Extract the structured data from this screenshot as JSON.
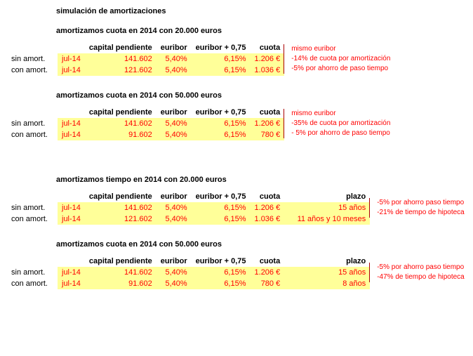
{
  "colors": {
    "highlight_bg": "#ffff99",
    "value_text": "#ff0000",
    "note_text": "#ff0000",
    "header_text": "#000000",
    "background": "#ffffff"
  },
  "typography": {
    "font_family": "Arial",
    "base_size_pt": 8,
    "title_weight": "bold"
  },
  "page_title": "simulación de amortizaciones",
  "headers": {
    "date": "",
    "capital": "capital pendiente",
    "euribor": "euribor",
    "spread": "euribor + 0,75",
    "cuota": "cuota",
    "plazo": "plazo"
  },
  "row_labels": {
    "sin": "sin amort.",
    "con": "con amort."
  },
  "sections": [
    {
      "subtitle": "amortizamos cuota en 2014 con 20.000 euros",
      "show_plazo": false,
      "rows": [
        {
          "label_key": "sin",
          "date": "jul-14",
          "capital": "141.602",
          "euribor": "5,40%",
          "spread": "6,15%",
          "cuota": "1.206 €",
          "plazo": ""
        },
        {
          "label_key": "con",
          "date": "jul-14",
          "capital": "121.602",
          "euribor": "5,40%",
          "spread": "6,15%",
          "cuota": "1.036 €",
          "plazo": ""
        }
      ],
      "notes": [
        "mismo euribor",
        "-14% de cuota por amortización",
        "-5% por ahorro de paso tiempo"
      ]
    },
    {
      "subtitle": "amortizamos cuota en 2014 con 50.000 euros",
      "show_plazo": false,
      "rows": [
        {
          "label_key": "sin",
          "date": "jul-14",
          "capital": "141.602",
          "euribor": "5,40%",
          "spread": "6,15%",
          "cuota": "1.206 €",
          "plazo": ""
        },
        {
          "label_key": "con",
          "date": "jul-14",
          "capital": "91.602",
          "euribor": "5,40%",
          "spread": "6,15%",
          "cuota": "780 €",
          "plazo": ""
        }
      ],
      "notes": [
        "mismo euribor",
        "-35% de cuota por amortización",
        "- 5% por ahorro de paso tiempo"
      ]
    },
    {
      "subtitle": "amortizamos tiempo en 2014 con 20.000 euros",
      "show_plazo": true,
      "extra_top_space": true,
      "rows": [
        {
          "label_key": "sin",
          "date": "jul-14",
          "capital": "141.602",
          "euribor": "5,40%",
          "spread": "6,15%",
          "cuota": "1.206 €",
          "plazo": "15 años"
        },
        {
          "label_key": "con",
          "date": "jul-14",
          "capital": "121.602",
          "euribor": "5,40%",
          "spread": "6,15%",
          "cuota": "1.036 €",
          "plazo": "11 años y 10 meses"
        }
      ],
      "notes": [
        "-5% por ahorro paso tiempo",
        "-21% de tiempo de hipoteca"
      ]
    },
    {
      "subtitle": "amortizamos cuota en 2014 con 50.000 euros",
      "show_plazo": true,
      "rows": [
        {
          "label_key": "sin",
          "date": "jul-14",
          "capital": "141.602",
          "euribor": "5,40%",
          "spread": "6,15%",
          "cuota": "1.206 €",
          "plazo": "15 años"
        },
        {
          "label_key": "con",
          "date": "jul-14",
          "capital": "91.602",
          "euribor": "5,40%",
          "spread": "6,15%",
          "cuota": "780 €",
          "plazo": "8 años"
        }
      ],
      "notes": [
        "-5% por ahorro paso tiempo",
        "-47% de tiempo de hipoteca"
      ]
    }
  ]
}
